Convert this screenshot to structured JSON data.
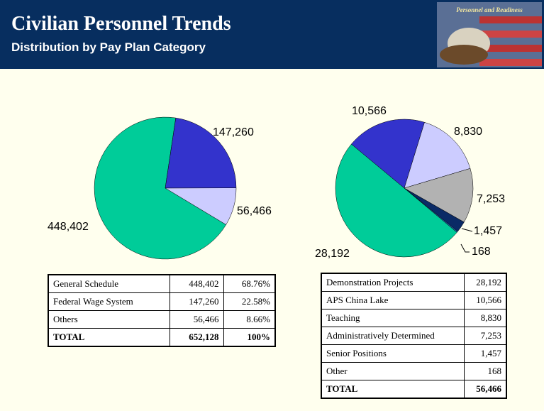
{
  "header": {
    "title": "Civilian Personnel Trends",
    "subtitle": "Distribution by Pay Plan Category",
    "logo_text": "Personnel and Readiness"
  },
  "chart_data": [
    {
      "type": "pie",
      "start_angle": 121,
      "values": [
        448402,
        147260,
        56466
      ],
      "value_labels": [
        "448,402",
        "147,260",
        "56,466"
      ],
      "colors": [
        "#00cc99",
        "#3333cc",
        "#ccccff"
      ]
    },
    {
      "type": "pie",
      "start_angle": 130,
      "values": [
        28192,
        10566,
        8830,
        7253,
        1457,
        168
      ],
      "value_labels": [
        "28,192",
        "10,566",
        "8,830",
        "7,253",
        "1,457",
        "168"
      ],
      "colors": [
        "#00cc99",
        "#3333cc",
        "#ccccff",
        "#b2b2b2",
        "#0a2a66",
        "#1f5fa0"
      ]
    }
  ],
  "tables": [
    {
      "rows": [
        [
          "General Schedule",
          "448,402",
          "68.76%"
        ],
        [
          "Federal Wage System",
          "147,260",
          "22.58%"
        ],
        [
          "Others",
          "56,466",
          "8.66%"
        ],
        [
          "TOTAL",
          "652,128",
          "100%"
        ]
      ]
    },
    {
      "rows": [
        [
          "Demonstration Projects",
          "28,192"
        ],
        [
          "APS China Lake",
          "10,566"
        ],
        [
          "Teaching",
          "8,830"
        ],
        [
          "Administratively Determined",
          "7,253"
        ],
        [
          "Senior Positions",
          "1,457"
        ],
        [
          "Other",
          "168"
        ],
        [
          "TOTAL",
          "56,466"
        ]
      ]
    }
  ]
}
